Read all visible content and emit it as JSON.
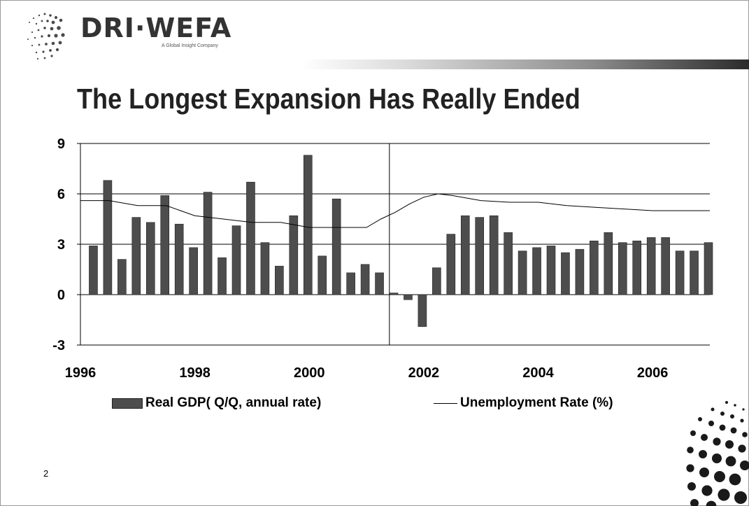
{
  "logo": {
    "name": "DRI·WEFA",
    "tagline": "A Global Insight Company"
  },
  "slide": {
    "title": "The Longest Expansion Has Really Ended",
    "number": "2"
  },
  "colors": {
    "bar": "#4d4d4d",
    "line": "#000000",
    "gridline": "#000000",
    "header_band_dark": "#2b2b2b"
  },
  "chart_data": {
    "type": "bar",
    "title": "",
    "xlabel": "",
    "ylabel": "",
    "ylim": [
      -3,
      9
    ],
    "yticks": [
      "9",
      "6",
      "3",
      "0",
      "-3"
    ],
    "xticks": [
      "1996",
      "1998",
      "2000",
      "2002",
      "2004",
      "2006"
    ],
    "xlim": [
      1996,
      2007
    ],
    "grid": true,
    "marker_line_x": 2001.4,
    "legend_position": "bottom",
    "series": [
      {
        "name": "Real GDP( Q/Q, annual rate)",
        "type": "bar",
        "x": [
          1996.25,
          1996.5,
          1996.75,
          1997.0,
          1997.25,
          1997.5,
          1997.75,
          1998.0,
          1998.25,
          1998.5,
          1998.75,
          1999.0,
          1999.25,
          1999.5,
          1999.75,
          2000.0,
          2000.25,
          2000.5,
          2000.75,
          2001.0,
          2001.25,
          2001.5,
          2001.75,
          2002.0,
          2002.25,
          2002.5,
          2002.75,
          2003.0,
          2003.25,
          2003.5,
          2003.75,
          2004.0,
          2004.25,
          2004.5,
          2004.75,
          2005.0,
          2005.25,
          2005.5,
          2005.75,
          2006.0,
          2006.25,
          2006.5,
          2006.75,
          2007.0
        ],
        "values": [
          2.9,
          6.8,
          2.1,
          4.6,
          4.3,
          5.9,
          4.2,
          2.8,
          6.1,
          2.2,
          4.1,
          6.7,
          3.1,
          1.7,
          4.7,
          8.3,
          2.3,
          5.7,
          1.3,
          1.8,
          1.3,
          0.1,
          -0.3,
          -1.9,
          1.6,
          3.6,
          4.7,
          4.6,
          4.7,
          3.7,
          2.6,
          2.8,
          2.9,
          2.5,
          2.7,
          3.2,
          3.7,
          3.1,
          3.2,
          3.4,
          3.4,
          2.6,
          2.6,
          3.1
        ]
      },
      {
        "name": "Unemployment Rate (%)",
        "type": "line",
        "x": [
          1996.0,
          1996.5,
          1997.0,
          1997.5,
          1998.0,
          1998.5,
          1999.0,
          1999.5,
          2000.0,
          2000.5,
          2001.0,
          2001.25,
          2001.5,
          2001.75,
          2002.0,
          2002.25,
          2002.5,
          2003.0,
          2003.5,
          2004.0,
          2004.5,
          2005.0,
          2005.5,
          2006.0,
          2006.5,
          2007.0
        ],
        "values": [
          5.6,
          5.6,
          5.3,
          5.3,
          4.7,
          4.5,
          4.3,
          4.3,
          4.0,
          4.0,
          4.0,
          4.5,
          4.9,
          5.4,
          5.8,
          6.0,
          5.9,
          5.6,
          5.5,
          5.5,
          5.3,
          5.2,
          5.1,
          5.0,
          5.0,
          5.0
        ]
      }
    ]
  }
}
